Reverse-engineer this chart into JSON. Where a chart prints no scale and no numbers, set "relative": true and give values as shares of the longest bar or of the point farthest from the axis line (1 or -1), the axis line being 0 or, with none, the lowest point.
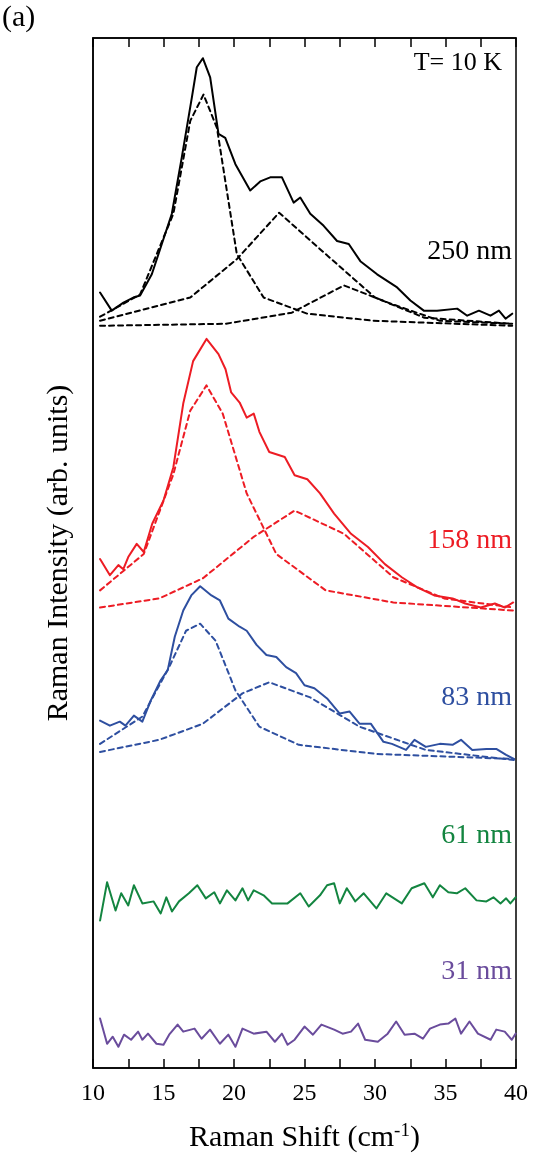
{
  "chart_data": {
    "type": "line",
    "relative": true,
    "xlabel": "Raman Shift (cm$^{-1}$)",
    "ylabel": "Raman Intensity (arb. units)",
    "annotations": [
      "(a)",
      "T= 10 K"
    ],
    "xlim": [
      10,
      40
    ],
    "xticks": [
      10,
      {
        "value": 12.5,
        "label": null
      },
      15,
      {
        "value": 17.5,
        "label": null
      },
      20,
      {
        "value": 22.5,
        "label": null
      },
      25,
      {
        "value": 27.5,
        "label": null
      },
      30,
      {
        "value": 32.5,
        "label": null
      },
      35,
      {
        "value": 37.5,
        "label": null
      },
      40
    ],
    "grid": false,
    "legend": false,
    "marker": "none",
    "series": [
      {
        "name": "250 nm",
        "color": "#000000",
        "line_style": "solid",
        "x": [
          10.5,
          11.33,
          12.16,
          12.86,
          13.34,
          14.17,
          14.88,
          15.59,
          16.3,
          17.01,
          17.36,
          17.79,
          18.31,
          18.9,
          19.38,
          20.1,
          21.15,
          21.86,
          22.57,
          23.4,
          24.23,
          24.7,
          25.41,
          26.36,
          27.31,
          28.14,
          28.96,
          30.15,
          31.57,
          32.51,
          33.46,
          34.4,
          35.83,
          36.54,
          37.37,
          38.19,
          38.79,
          39.26,
          39.73
        ],
        "values": [
          0.768,
          0.75,
          0.758,
          0.763,
          0.765,
          0.786,
          0.816,
          0.846,
          0.902,
          0.961,
          0.991,
          1.0,
          0.981,
          0.925,
          0.921,
          0.895,
          0.869,
          0.878,
          0.882,
          0.882,
          0.857,
          0.862,
          0.846,
          0.834,
          0.819,
          0.816,
          0.799,
          0.786,
          0.773,
          0.76,
          0.75,
          0.75,
          0.752,
          0.745,
          0.75,
          0.745,
          0.75,
          0.742,
          0.747
        ]
      },
      {
        "color": "#000000",
        "line_style": "dashed",
        "x": [
          10.5,
          13.34,
          15.7,
          16.9,
          17.84,
          18.79,
          20.2,
          22.1,
          25.2,
          29.9,
          39.73
        ],
        "values": [
          0.744,
          0.766,
          0.846,
          0.938,
          0.964,
          0.931,
          0.806,
          0.763,
          0.747,
          0.74,
          0.735
        ]
      },
      {
        "color": "#000000",
        "line_style": "dashed",
        "x": [
          10.5,
          16.9,
          20.2,
          23.2,
          26.5,
          30.0,
          33.5,
          39.73
        ],
        "values": [
          0.74,
          0.763,
          0.801,
          0.847,
          0.806,
          0.763,
          0.743,
          0.737
        ]
      },
      {
        "color": "#000000",
        "line_style": "dashed",
        "x": [
          10.5,
          19.4,
          24.1,
          27.8,
          31.1,
          34.6,
          39.73
        ],
        "values": [
          0.735,
          0.737,
          0.748,
          0.775,
          0.757,
          0.74,
          0.737
        ]
      },
      {
        "name": "158 nm",
        "color": "#ed1c24",
        "line_style": "solid",
        "x": [
          10.5,
          11.2,
          11.8,
          12.15,
          12.5,
          13.1,
          13.6,
          14.2,
          15.0,
          15.7,
          16.4,
          17.1,
          18.05,
          18.9,
          19.4,
          19.8,
          20.4,
          20.9,
          21.4,
          21.8,
          22.5,
          23.6,
          24.3,
          25.2,
          26.1,
          27.1,
          28.3,
          29.5,
          30.7,
          31.9,
          33.0,
          34.2,
          35.5,
          36.4,
          37.5,
          38.5,
          39.2,
          39.8
        ],
        "values": [
          0.504,
          0.488,
          0.498,
          0.494,
          0.506,
          0.519,
          0.511,
          0.539,
          0.562,
          0.595,
          0.658,
          0.7,
          0.722,
          0.707,
          0.692,
          0.669,
          0.659,
          0.644,
          0.648,
          0.63,
          0.61,
          0.605,
          0.587,
          0.583,
          0.569,
          0.549,
          0.529,
          0.516,
          0.499,
          0.486,
          0.476,
          0.468,
          0.465,
          0.46,
          0.456,
          0.46,
          0.456,
          0.461
        ]
      },
      {
        "color": "#ed1c24",
        "line_style": "dashed",
        "x": [
          10.5,
          13.6,
          15.7,
          16.9,
          18.05,
          19.2,
          20.9,
          23.0,
          26.5,
          31.3,
          39.85
        ],
        "values": [
          0.473,
          0.509,
          0.588,
          0.651,
          0.676,
          0.648,
          0.569,
          0.509,
          0.473,
          0.461,
          0.453
        ]
      },
      {
        "color": "#ed1c24",
        "line_style": "dashed",
        "x": [
          10.5,
          14.7,
          17.8,
          21.4,
          24.3,
          27.8,
          31.3,
          34.9,
          39.85
        ],
        "values": [
          0.456,
          0.465,
          0.485,
          0.526,
          0.552,
          0.529,
          0.486,
          0.465,
          0.456
        ]
      },
      {
        "name": "83 nm",
        "color": "#2e4fa0",
        "line_style": "solid",
        "x": [
          10.5,
          11.2,
          11.9,
          12.3,
          12.9,
          13.5,
          14.1,
          14.8,
          15.3,
          15.8,
          16.4,
          16.97,
          17.6,
          18.4,
          19.0,
          19.6,
          20.4,
          20.9,
          21.6,
          22.3,
          23.0,
          23.7,
          24.4,
          25.0,
          25.7,
          26.6,
          27.5,
          28.2,
          28.9,
          29.7,
          30.6,
          31.2,
          32.2,
          32.8,
          33.6,
          34.6,
          35.5,
          36.1,
          36.9,
          37.9,
          38.6,
          39.3,
          39.85
        ],
        "values": [
          0.344,
          0.339,
          0.343,
          0.339,
          0.349,
          0.343,
          0.364,
          0.384,
          0.394,
          0.427,
          0.453,
          0.468,
          0.477,
          0.468,
          0.463,
          0.445,
          0.437,
          0.433,
          0.419,
          0.409,
          0.407,
          0.397,
          0.391,
          0.379,
          0.376,
          0.366,
          0.351,
          0.353,
          0.341,
          0.341,
          0.323,
          0.321,
          0.315,
          0.325,
          0.318,
          0.321,
          0.32,
          0.325,
          0.315,
          0.316,
          0.316,
          0.31,
          0.306
        ]
      },
      {
        "color": "#2e4fa0",
        "line_style": "dashed",
        "x": [
          10.5,
          13.5,
          15.4,
          16.6,
          17.6,
          18.7,
          20.1,
          21.8,
          24.6,
          30.1,
          39.85
        ],
        "values": [
          0.321,
          0.348,
          0.397,
          0.433,
          0.44,
          0.423,
          0.374,
          0.338,
          0.32,
          0.311,
          0.306
        ]
      },
      {
        "color": "#2e4fa0",
        "line_style": "dashed",
        "x": [
          10.5,
          14.7,
          17.8,
          20.6,
          22.5,
          25.4,
          28.9,
          33.6,
          39.85
        ],
        "values": [
          0.313,
          0.325,
          0.341,
          0.371,
          0.382,
          0.367,
          0.338,
          0.315,
          0.305
        ]
      },
      {
        "name": "61 nm",
        "color": "#138540",
        "line_style": "solid",
        "x": [
          10.5,
          11.0,
          11.6,
          12.0,
          12.5,
          12.9,
          13.5,
          14.3,
          14.8,
          15.2,
          15.6,
          16.1,
          16.8,
          17.4,
          18.0,
          18.6,
          19.0,
          19.5,
          20.1,
          20.6,
          21.0,
          21.4,
          22.1,
          22.7,
          23.8,
          24.7,
          25.3,
          26.1,
          26.6,
          27.1,
          27.5,
          28.0,
          28.6,
          29.2,
          30.1,
          30.8,
          31.9,
          32.6,
          33.5,
          34.1,
          34.6,
          35.2,
          35.8,
          36.4,
          37.2,
          37.9,
          38.4,
          38.9,
          39.3,
          39.6,
          39.97
        ],
        "values": [
          0.146,
          0.184,
          0.156,
          0.173,
          0.161,
          0.181,
          0.163,
          0.165,
          0.153,
          0.169,
          0.155,
          0.165,
          0.173,
          0.181,
          0.168,
          0.174,
          0.163,
          0.176,
          0.166,
          0.178,
          0.166,
          0.176,
          0.171,
          0.163,
          0.163,
          0.173,
          0.16,
          0.171,
          0.181,
          0.183,
          0.163,
          0.178,
          0.165,
          0.173,
          0.158,
          0.173,
          0.163,
          0.178,
          0.183,
          0.169,
          0.181,
          0.174,
          0.173,
          0.178,
          0.166,
          0.165,
          0.169,
          0.163,
          0.168,
          0.163,
          0.169
        ]
      },
      {
        "name": "31 nm",
        "color": "#6a4c9c",
        "line_style": "solid",
        "x": [
          10.5,
          11.0,
          11.4,
          11.8,
          12.2,
          12.7,
          13.2,
          13.5,
          13.9,
          14.5,
          15.0,
          15.4,
          16.0,
          16.4,
          17.2,
          17.7,
          18.3,
          19.0,
          19.6,
          20.1,
          20.6,
          21.4,
          22.3,
          22.9,
          23.4,
          23.8,
          24.3,
          25.0,
          25.6,
          26.2,
          27.1,
          27.7,
          28.3,
          28.8,
          29.3,
          30.2,
          30.9,
          31.5,
          32.1,
          32.8,
          33.4,
          33.9,
          34.6,
          35.2,
          35.7,
          36.1,
          36.7,
          37.3,
          38.2,
          38.6,
          39.2,
          39.7,
          39.97
        ],
        "values": [
          0.049,
          0.024,
          0.031,
          0.021,
          0.033,
          0.028,
          0.036,
          0.028,
          0.034,
          0.024,
          0.023,
          0.033,
          0.043,
          0.036,
          0.039,
          0.029,
          0.038,
          0.024,
          0.033,
          0.021,
          0.039,
          0.034,
          0.036,
          0.026,
          0.034,
          0.023,
          0.028,
          0.041,
          0.033,
          0.043,
          0.038,
          0.034,
          0.036,
          0.044,
          0.028,
          0.026,
          0.034,
          0.046,
          0.033,
          0.034,
          0.029,
          0.039,
          0.043,
          0.044,
          0.049,
          0.034,
          0.046,
          0.034,
          0.028,
          0.038,
          0.036,
          0.028,
          0.034
        ]
      }
    ]
  }
}
